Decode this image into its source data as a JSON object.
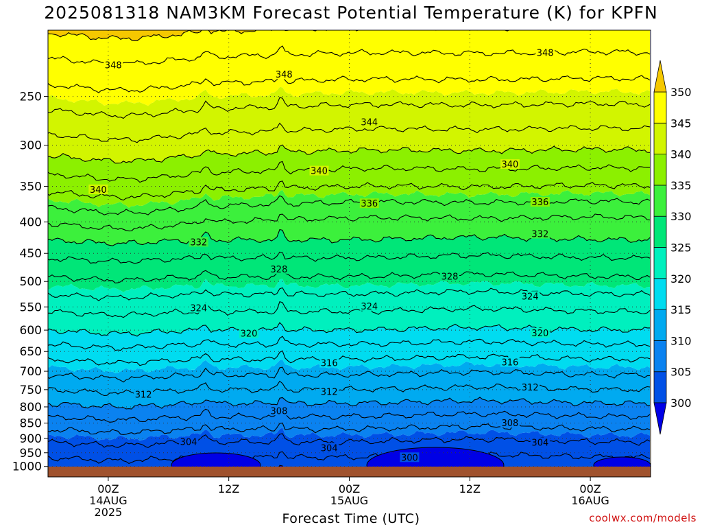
{
  "chart_data": {
    "type": "heatmap",
    "title": "2025081318 NAM3KM Forecast Potential Temperature (K) for KPFN",
    "xlabel": "Forecast Time (UTC)",
    "ylabel": "",
    "y_axis": {
      "scale": "log",
      "inverted": true,
      "ylim": [
        1040,
        195
      ],
      "ticks": [
        250,
        300,
        350,
        400,
        450,
        500,
        550,
        600,
        650,
        700,
        750,
        800,
        850,
        900,
        950,
        1000
      ],
      "tick_labels": [
        "250",
        "300",
        "350",
        "400",
        "450",
        "500",
        "550",
        "600",
        "650",
        "700",
        "750",
        "800",
        "850",
        "900",
        "950",
        "1000"
      ]
    },
    "x_axis": {
      "xlim": [
        "2025-08-13 18Z",
        "2025-08-16 06Z"
      ],
      "xlim_hours": [
        -6,
        54
      ],
      "ticks_hours": [
        0,
        12,
        24,
        36,
        48
      ],
      "tick_labels": [
        [
          "00Z",
          "14AUG",
          "2025"
        ],
        [
          "12Z"
        ],
        [
          "00Z",
          "15AUG"
        ],
        [
          "12Z"
        ],
        [
          "00Z",
          "16AUG"
        ]
      ]
    },
    "colorbar": {
      "levels": [
        300,
        305,
        310,
        315,
        320,
        325,
        330,
        335,
        340,
        345,
        350
      ],
      "labels": [
        "300",
        "305",
        "310",
        "315",
        "320",
        "325",
        "330",
        "335",
        "340",
        "345",
        "350"
      ],
      "colors": [
        "#0000e6",
        "#0050e6",
        "#0a82f0",
        "#00aaf0",
        "#00dcf0",
        "#00f0be",
        "#00e678",
        "#3cf03c",
        "#8cf000",
        "#d2f500",
        "#ffff00",
        "#f5c800"
      ],
      "extend": "both"
    },
    "contour_interval": 2,
    "pressure_profile_hPa": [
      1000,
      950,
      900,
      850,
      800,
      750,
      700,
      650,
      600,
      550,
      500,
      450,
      400,
      350,
      300,
      250,
      200
    ],
    "theta_profile_K": [
      301,
      302.5,
      304.5,
      307,
      309.5,
      312,
      314.5,
      317,
      320,
      322.5,
      325.5,
      328.5,
      332,
      336.5,
      341,
      345,
      349.5
    ],
    "contour_labels": [
      {
        "text": "348",
        "hour": 0.5,
        "p": 222
      },
      {
        "text": "348",
        "hour": 17.5,
        "p": 230
      },
      {
        "text": "348",
        "hour": 43.5,
        "p": 212
      },
      {
        "text": "344",
        "hour": 26,
        "p": 275
      },
      {
        "text": "340",
        "hour": 21,
        "p": 330
      },
      {
        "text": "340",
        "hour": 40,
        "p": 322
      },
      {
        "text": "340",
        "hour": -1,
        "p": 354
      },
      {
        "text": "336",
        "hour": 26,
        "p": 373
      },
      {
        "text": "336",
        "hour": 43,
        "p": 371
      },
      {
        "text": "332",
        "hour": 9,
        "p": 431
      },
      {
        "text": "332",
        "hour": 43,
        "p": 418
      },
      {
        "text": "328",
        "hour": 17,
        "p": 477
      },
      {
        "text": "328",
        "hour": 34,
        "p": 490
      },
      {
        "text": "324",
        "hour": 9,
        "p": 552
      },
      {
        "text": "324",
        "hour": 26,
        "p": 548
      },
      {
        "text": "324",
        "hour": 42,
        "p": 528
      },
      {
        "text": "320",
        "hour": 14,
        "p": 607
      },
      {
        "text": "320",
        "hour": 43,
        "p": 606
      },
      {
        "text": "316",
        "hour": 22,
        "p": 678
      },
      {
        "text": "316",
        "hour": 40,
        "p": 676
      },
      {
        "text": "312",
        "hour": 3.5,
        "p": 763
      },
      {
        "text": "312",
        "hour": 22,
        "p": 755
      },
      {
        "text": "312",
        "hour": 42,
        "p": 743
      },
      {
        "text": "308",
        "hour": 17,
        "p": 811
      },
      {
        "text": "308",
        "hour": 40,
        "p": 849
      },
      {
        "text": "304",
        "hour": 8,
        "p": 911
      },
      {
        "text": "304",
        "hour": 22,
        "p": 932
      },
      {
        "text": "304",
        "hour": 43,
        "p": 913
      },
      {
        "text": "300",
        "hour": 30,
        "p": 966
      }
    ]
  },
  "credit": "coolwx.com/models"
}
